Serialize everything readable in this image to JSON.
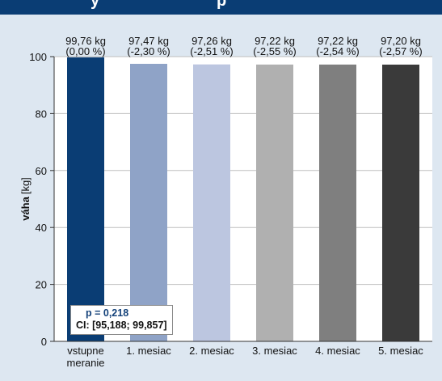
{
  "header": {
    "title_fragments": [
      "y",
      "p"
    ]
  },
  "stat_box": {
    "p_value": "p = 0,218",
    "ci": "CI: [95,188; 99,857]"
  },
  "chart_data": {
    "type": "bar",
    "categories": [
      [
        "vstupne",
        "meranie"
      ],
      [
        "1. mesiac"
      ],
      [
        "2. mesiac"
      ],
      [
        "3. mesiac"
      ],
      [
        "4. mesiac"
      ],
      [
        "5. mesiac"
      ]
    ],
    "values": [
      99.76,
      97.47,
      97.26,
      97.22,
      97.22,
      97.2
    ],
    "value_labels": [
      "99,76 kg",
      "97,47 kg",
      "97,26 kg",
      "97,22 kg",
      "97,22 kg",
      "97,20 kg"
    ],
    "change_labels": [
      "(0,00 %)",
      "(-2,30 %)",
      "(-2,51 %)",
      "(-2,55 %)",
      "(-2,54 %)",
      "(-2,57 %)"
    ],
    "bar_colors": [
      "#0a3d74",
      "#8fa3c7",
      "#bcc6e0",
      "#b0b0b0",
      "#7f7f7f",
      "#3a3a3a"
    ],
    "ylabel_bold": "váha",
    "ylabel_unit": "[kg]",
    "ylim": [
      0,
      100
    ],
    "yticks": [
      0,
      20,
      40,
      60,
      80,
      100
    ],
    "grid": true,
    "background": "#ffffff"
  }
}
